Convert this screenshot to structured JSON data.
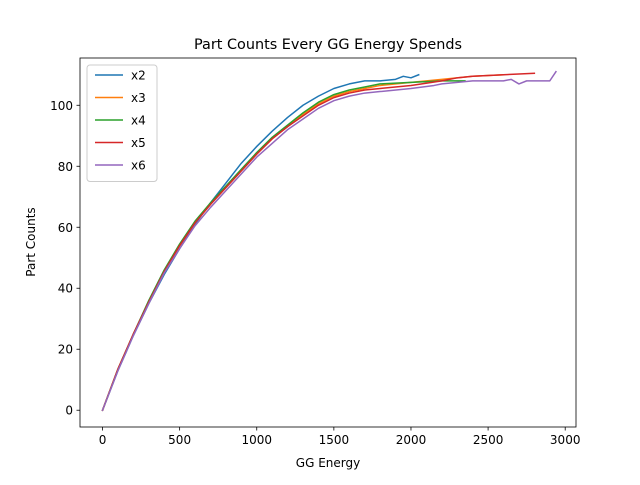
{
  "chart_data": {
    "type": "line",
    "title": "Part Counts Every GG Energy Spends",
    "xlabel": "GG Energy",
    "ylabel": "Part Counts",
    "xlim": [
      -146,
      3070
    ],
    "ylim": [
      -5.5,
      115.5
    ],
    "xticks": [
      0,
      500,
      1000,
      1500,
      2000,
      2500,
      3000
    ],
    "yticks": [
      0,
      20,
      40,
      60,
      80,
      100
    ],
    "grid": false,
    "legend_position": "top-left",
    "series": [
      {
        "name": "x2",
        "color": "#1f77b4",
        "points": [
          [
            0,
            0
          ],
          [
            100,
            13
          ],
          [
            200,
            24.5
          ],
          [
            300,
            35
          ],
          [
            400,
            44.5
          ],
          [
            500,
            53
          ],
          [
            600,
            61
          ],
          [
            700,
            68
          ],
          [
            800,
            74.5
          ],
          [
            900,
            81
          ],
          [
            1000,
            86.5
          ],
          [
            1100,
            91.5
          ],
          [
            1200,
            96
          ],
          [
            1300,
            100
          ],
          [
            1400,
            103
          ],
          [
            1500,
            105.5
          ],
          [
            1600,
            107
          ],
          [
            1700,
            108
          ],
          [
            1800,
            108
          ],
          [
            1900,
            108.5
          ],
          [
            1950,
            109.5
          ],
          [
            2000,
            109
          ],
          [
            2050,
            110
          ]
        ]
      },
      {
        "name": "x3",
        "color": "#ff7f0e",
        "points": [
          [
            0,
            0
          ],
          [
            100,
            13.5
          ],
          [
            200,
            25
          ],
          [
            300,
            35.5
          ],
          [
            400,
            45.5
          ],
          [
            500,
            54
          ],
          [
            600,
            61.5
          ],
          [
            700,
            67.5
          ],
          [
            800,
            73
          ],
          [
            900,
            78.5
          ],
          [
            1000,
            84
          ],
          [
            1100,
            89
          ],
          [
            1200,
            93
          ],
          [
            1300,
            97
          ],
          [
            1400,
            100.5
          ],
          [
            1500,
            103
          ],
          [
            1600,
            104.5
          ],
          [
            1700,
            105.5
          ],
          [
            1800,
            106.5
          ],
          [
            2000,
            107.5
          ],
          [
            2200,
            108.5
          ],
          [
            2400,
            109.5
          ],
          [
            2600,
            110
          ]
        ]
      },
      {
        "name": "x4",
        "color": "#2ca02c",
        "points": [
          [
            0,
            0
          ],
          [
            100,
            13.5
          ],
          [
            200,
            25
          ],
          [
            300,
            36
          ],
          [
            400,
            46
          ],
          [
            500,
            54.5
          ],
          [
            600,
            62
          ],
          [
            700,
            68
          ],
          [
            800,
            73.5
          ],
          [
            900,
            79
          ],
          [
            1000,
            84.5
          ],
          [
            1100,
            89.5
          ],
          [
            1200,
            93.5
          ],
          [
            1300,
            97.5
          ],
          [
            1400,
            101
          ],
          [
            1500,
            103.5
          ],
          [
            1600,
            105
          ],
          [
            1700,
            106
          ],
          [
            1800,
            107
          ],
          [
            2000,
            107.5
          ],
          [
            2200,
            108
          ],
          [
            2350,
            108
          ]
        ]
      },
      {
        "name": "x5",
        "color": "#d62728",
        "points": [
          [
            0,
            0
          ],
          [
            100,
            13.5
          ],
          [
            200,
            25
          ],
          [
            300,
            35.5
          ],
          [
            400,
            45.5
          ],
          [
            500,
            54
          ],
          [
            600,
            61.5
          ],
          [
            700,
            67.5
          ],
          [
            800,
            73
          ],
          [
            900,
            78.5
          ],
          [
            1000,
            84
          ],
          [
            1100,
            89
          ],
          [
            1200,
            93
          ],
          [
            1300,
            96.5
          ],
          [
            1400,
            100
          ],
          [
            1500,
            102.5
          ],
          [
            1600,
            104
          ],
          [
            1700,
            105
          ],
          [
            1800,
            105.5
          ],
          [
            2000,
            106.5
          ],
          [
            2200,
            108
          ],
          [
            2300,
            109
          ],
          [
            2400,
            109.5
          ],
          [
            2600,
            110
          ],
          [
            2800,
            110.5
          ]
        ]
      },
      {
        "name": "x6",
        "color": "#9467bd",
        "points": [
          [
            0,
            0
          ],
          [
            100,
            13
          ],
          [
            200,
            24.5
          ],
          [
            300,
            35
          ],
          [
            400,
            45
          ],
          [
            500,
            53
          ],
          [
            600,
            60.5
          ],
          [
            700,
            66.5
          ],
          [
            800,
            72
          ],
          [
            900,
            77.5
          ],
          [
            1000,
            83
          ],
          [
            1100,
            87.5
          ],
          [
            1200,
            92
          ],
          [
            1300,
            95.5
          ],
          [
            1400,
            99
          ],
          [
            1500,
            101.5
          ],
          [
            1600,
            103
          ],
          [
            1700,
            104
          ],
          [
            1800,
            104.5
          ],
          [
            2000,
            105.5
          ],
          [
            2150,
            106.5
          ],
          [
            2200,
            107
          ],
          [
            2400,
            108
          ],
          [
            2600,
            108
          ],
          [
            2650,
            108.5
          ],
          [
            2700,
            107
          ],
          [
            2750,
            108
          ],
          [
            2900,
            108
          ],
          [
            2940,
            111
          ]
        ]
      }
    ]
  }
}
